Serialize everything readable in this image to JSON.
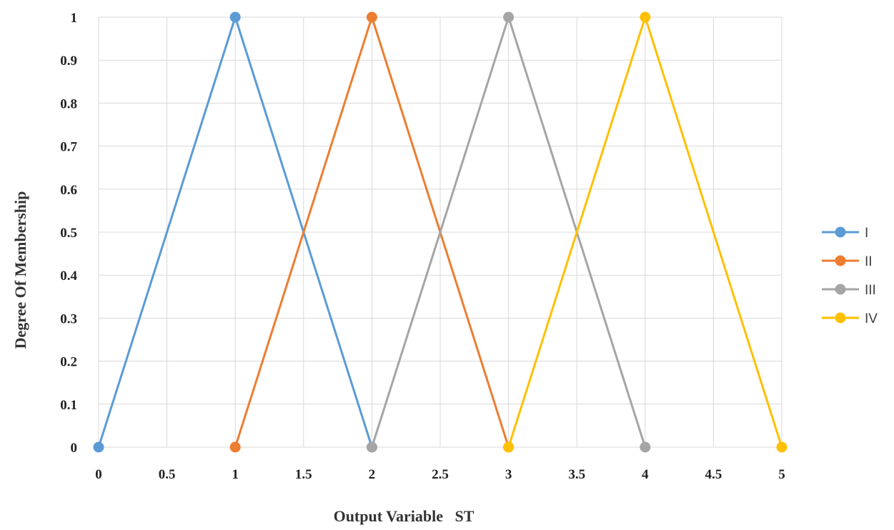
{
  "chart_data": {
    "type": "line",
    "title": "",
    "xlabel": "Output Variable   ST",
    "ylabel": "Degree Of Membership",
    "xlim": [
      0,
      5
    ],
    "ylim": [
      0,
      1
    ],
    "x_ticks": [
      "0",
      "0.5",
      "1",
      "1.5",
      "2",
      "2.5",
      "3",
      "3.5",
      "4",
      "4.5",
      "5"
    ],
    "y_ticks": [
      "0",
      "0.1",
      "0.2",
      "0.3",
      "0.4",
      "0.5",
      "0.6",
      "0.7",
      "0.8",
      "0.9",
      "1"
    ],
    "grid": true,
    "legend_position": "right",
    "series": [
      {
        "name": "I",
        "color": "#5b9bd5",
        "x": [
          0,
          1,
          2
        ],
        "y": [
          0,
          1,
          0
        ]
      },
      {
        "name": "II",
        "color": "#ed7d31",
        "x": [
          1,
          2,
          3
        ],
        "y": [
          0,
          1,
          0
        ]
      },
      {
        "name": "III",
        "color": "#a5a5a5",
        "x": [
          2,
          3,
          4
        ],
        "y": [
          0,
          1,
          0
        ]
      },
      {
        "name": "IV",
        "color": "#ffc000",
        "x": [
          3,
          4,
          5
        ],
        "y": [
          0,
          1,
          0
        ]
      }
    ]
  }
}
